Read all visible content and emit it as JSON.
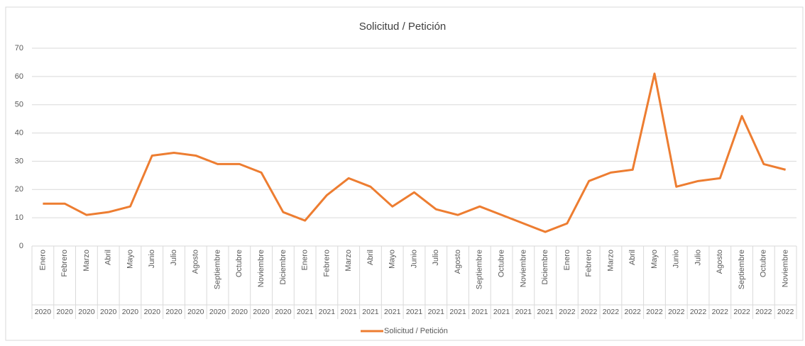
{
  "chart_data": {
    "type": "line",
    "title": "Solicitud / Petición",
    "categories": [
      "Enero",
      "Febrero",
      "Marzo",
      "Abril",
      "Mayo",
      "Junio",
      "Julio",
      "Agosto",
      "Septiembre",
      "Octubre",
      "Noviembre",
      "Diciembre",
      "Enero",
      "Febrero",
      "Marzo",
      "Abril",
      "Mayo",
      "Junio",
      "Julio",
      "Agosto",
      "Septiembre",
      "Octubre",
      "Noviembre",
      "Diciembre",
      "Enero",
      "Febrero",
      "Marzo",
      "Abril",
      "Mayo",
      "Junio",
      "Julio",
      "Agosto",
      "Septiembre",
      "Octubre",
      "Noviembre"
    ],
    "category_groups": [
      "2020",
      "2020",
      "2020",
      "2020",
      "2020",
      "2020",
      "2020",
      "2020",
      "2020",
      "2020",
      "2020",
      "2020",
      "2021",
      "2021",
      "2021",
      "2021",
      "2021",
      "2021",
      "2021",
      "2021",
      "2021",
      "2021",
      "2021",
      "2021",
      "2022",
      "2022",
      "2022",
      "2022",
      "2022",
      "2022",
      "2022",
      "2022",
      "2022",
      "2022",
      "2022"
    ],
    "series": [
      {
        "name": "Solicitud / Petición",
        "color": "#ed7d31",
        "values": [
          15,
          15,
          11,
          12,
          14,
          32,
          33,
          32,
          29,
          29,
          26,
          12,
          9,
          18,
          24,
          21,
          14,
          19,
          13,
          11,
          14,
          11,
          8,
          5,
          8,
          23,
          26,
          27,
          61,
          21,
          23,
          24,
          46,
          29,
          27
        ]
      }
    ],
    "ylim": [
      0,
      70
    ],
    "yticks": [
      0,
      10,
      20,
      30,
      40,
      50,
      60,
      70
    ],
    "grid": true,
    "legend": "bottom"
  }
}
